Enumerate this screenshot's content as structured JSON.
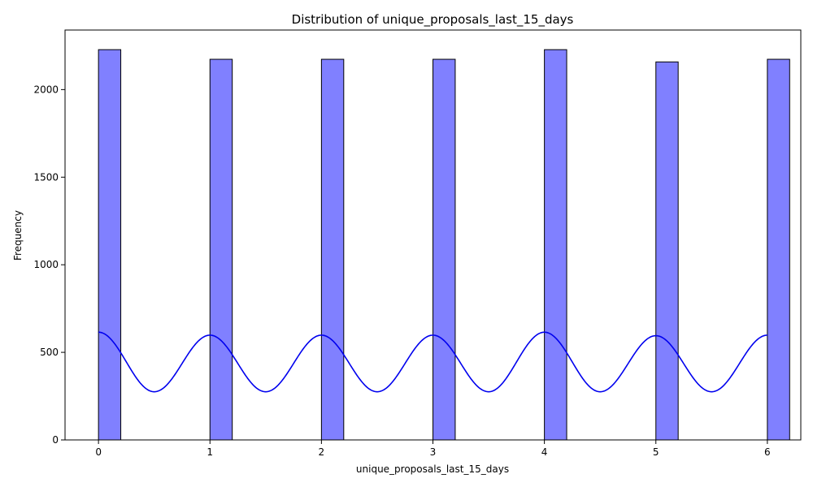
{
  "chart_data": {
    "type": "bar",
    "title": "Distribution of unique_proposals_last_15_days",
    "xlabel": "unique_proposals_last_15_days",
    "ylabel": "Frequency",
    "xlim": [
      -0.3,
      6.3
    ],
    "ylim": [
      0,
      2340
    ],
    "x_ticks": [
      0,
      1,
      2,
      3,
      4,
      5,
      6
    ],
    "y_ticks": [
      0,
      500,
      1000,
      1500,
      2000
    ],
    "bin_width": 0.2,
    "bins": [
      {
        "x": 0,
        "value": 2228
      },
      {
        "x": 1,
        "value": 2173
      },
      {
        "x": 2,
        "value": 2173
      },
      {
        "x": 3,
        "value": 2173
      },
      {
        "x": 4,
        "value": 2228
      },
      {
        "x": 5,
        "value": 2158
      },
      {
        "x": 6,
        "value": 2173
      }
    ],
    "kde": {
      "peak_x": [
        0,
        1,
        2,
        3,
        4,
        5,
        6
      ],
      "peak_y": [
        615,
        598,
        598,
        598,
        615,
        595,
        598
      ],
      "trough_y": 275
    },
    "bar_color": "#8080ff",
    "bar_edge_color": "#000000",
    "kde_color": "#0000ee",
    "grid": false,
    "legend": "none"
  }
}
